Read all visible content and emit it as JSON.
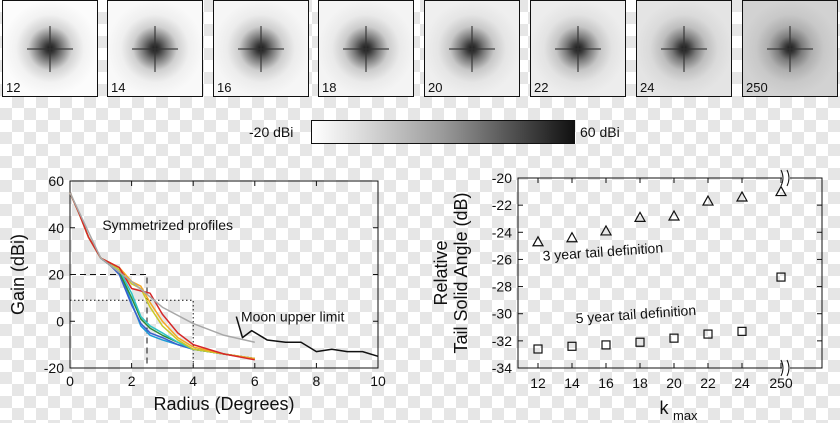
{
  "colorbar": {
    "min_label": "-20 dBi",
    "max_label": "60 dBi"
  },
  "thumbnails": [
    {
      "label": "12",
      "blur": 0.0
    },
    {
      "label": "14",
      "blur": 0.05
    },
    {
      "label": "16",
      "blur": 0.08
    },
    {
      "label": "18",
      "blur": 0.12
    },
    {
      "label": "20",
      "blur": 0.18
    },
    {
      "label": "22",
      "blur": 0.22
    },
    {
      "label": "24",
      "blur": 0.35
    },
    {
      "label": "250",
      "blur": 0.6
    }
  ],
  "chart_data": [
    {
      "type": "line",
      "xlabel": "Radius (Degrees)",
      "ylabel": "Gain (dBi)",
      "xlim": [
        0,
        10
      ],
      "ylim": [
        -20,
        60
      ],
      "xticks": [
        "0",
        "2",
        "4",
        "6",
        "8",
        "10"
      ],
      "yticks": [
        "-20",
        "0",
        "20",
        "40",
        "60"
      ],
      "annotations": [
        "Symmetrized profiles",
        "Moon upper limit"
      ],
      "series": [
        {
          "color": "#1a9bd7",
          "x": [
            0,
            0.3,
            0.6,
            1.0,
            1.3,
            1.6,
            2.0,
            2.3,
            2.6,
            3.0,
            3.5,
            4.0,
            5.0,
            6.0
          ],
          "y": [
            55,
            46,
            36,
            27,
            24,
            21,
            8,
            -2,
            -6,
            -8,
            -10,
            -12,
            -14,
            -16
          ]
        },
        {
          "color": "#3a5fcd",
          "x": [
            0,
            0.3,
            0.6,
            1.0,
            1.3,
            1.6,
            2.0,
            2.3,
            2.6,
            3.0,
            3.5,
            4.0,
            5.0,
            6.0
          ],
          "y": [
            55,
            46,
            36,
            27,
            24,
            20,
            7,
            -1,
            -5,
            -7,
            -10,
            -12,
            -14,
            -16
          ]
        },
        {
          "color": "#2e8b3a",
          "x": [
            0,
            0.3,
            0.6,
            1.0,
            1.3,
            1.6,
            2.0,
            2.3,
            2.6,
            3.0,
            3.5,
            4.0,
            5.0,
            6.0
          ],
          "y": [
            55,
            46,
            36,
            27,
            24,
            21,
            10,
            1,
            -3,
            -6,
            -9,
            -12,
            -14,
            -16
          ]
        },
        {
          "color": "#2fc4c4",
          "x": [
            0,
            0.3,
            0.6,
            1.0,
            1.3,
            1.6,
            2.0,
            2.3,
            2.6,
            3.0,
            3.5,
            4.0,
            5.0,
            6.0
          ],
          "y": [
            55,
            46,
            36,
            27,
            25,
            22,
            12,
            2,
            -2,
            -5,
            -9,
            -12,
            -14,
            -16
          ]
        },
        {
          "color": "#c9c928",
          "x": [
            0,
            0.3,
            0.6,
            1.0,
            1.3,
            1.6,
            2.0,
            2.3,
            2.6,
            3.0,
            3.5,
            4.0,
            5.0,
            6.0
          ],
          "y": [
            55,
            46,
            36,
            27,
            25,
            22,
            16,
            14,
            6,
            -2,
            -8,
            -12,
            -14,
            -16
          ]
        },
        {
          "color": "#f5a623",
          "x": [
            0,
            0.3,
            0.6,
            1.0,
            1.3,
            1.6,
            2.0,
            2.3,
            2.6,
            3.0,
            3.5,
            4.0,
            5.0,
            6.0
          ],
          "y": [
            55,
            46,
            36,
            27,
            25,
            23,
            17,
            15,
            8,
            0,
            -7,
            -11,
            -14,
            -16
          ]
        },
        {
          "color": "#d62728",
          "x": [
            0,
            0.3,
            0.6,
            1.0,
            1.3,
            1.6,
            2.0,
            2.3,
            2.6,
            3.0,
            3.5,
            4.0,
            5.0,
            6.0
          ],
          "y": [
            55,
            46,
            36,
            27,
            25,
            23,
            14,
            13,
            12,
            3,
            -5,
            -10,
            -14,
            -16.5
          ]
        },
        {
          "color": "#a8a8a8",
          "x": [
            0,
            1.0,
            2.0,
            3.0,
            4.0,
            5.0,
            6.0
          ],
          "y": [
            55,
            27,
            17,
            6,
            -1,
            -6,
            -9
          ]
        },
        {
          "color": "#111111",
          "x": [
            5.4,
            5.6,
            5.9,
            6.4,
            7.0,
            7.5,
            8.0,
            8.5,
            9.0,
            9.5,
            10.0
          ],
          "y": [
            2,
            -7,
            -4,
            -8,
            -9,
            -9,
            -13,
            -12,
            -13,
            -13,
            -15
          ]
        }
      ],
      "reference_lines": [
        {
          "style": "dashed",
          "x": [
            0,
            2.5,
            2.5
          ],
          "y": [
            20,
            20,
            -20
          ]
        },
        {
          "style": "dotted",
          "x": [
            0,
            4,
            4
          ],
          "y": [
            9,
            9,
            -20
          ]
        }
      ]
    },
    {
      "type": "scatter",
      "xlabel": "k",
      "xlabel_sub": "max",
      "ylabel_line1": "Relative",
      "ylabel_line2": "Tail Solid Angle (dB)",
      "categories": [
        "12",
        "14",
        "16",
        "18",
        "20",
        "22",
        "24",
        "250"
      ],
      "ylim": [
        -34,
        -20
      ],
      "yticks": [
        "-20",
        "-22",
        "-24",
        "-26",
        "-28",
        "-30",
        "-32",
        "-34"
      ],
      "series": [
        {
          "name": "3 year tail definition",
          "marker": "triangle",
          "values": [
            -24.7,
            -24.4,
            -23.9,
            -22.9,
            -22.8,
            -21.7,
            -21.4,
            -21.0
          ]
        },
        {
          "name": "5 year tail definition",
          "marker": "square",
          "values": [
            -32.6,
            -32.4,
            -32.3,
            -32.1,
            -31.8,
            -31.5,
            -31.3,
            -27.3
          ]
        }
      ]
    }
  ]
}
